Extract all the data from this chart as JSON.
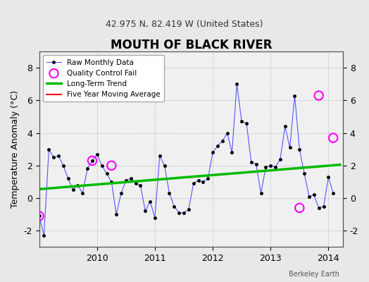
{
  "title": "MOUTH OF BLACK RIVER",
  "subtitle": "42.975 N, 82.419 W (United States)",
  "ylabel": "Temperature Anomaly (°C)",
  "footer": "Berkeley Earth",
  "background_color": "#e8e8e8",
  "plot_bg_color": "#f0f0f0",
  "ylim": [
    -3,
    9
  ],
  "yticks": [
    -2,
    0,
    2,
    4,
    6,
    8
  ],
  "x_start_year": 2009.0,
  "x_end_year": 2014.25,
  "monthly_data": {
    "times": [
      2009.0,
      2009.083,
      2009.167,
      2009.25,
      2009.333,
      2009.417,
      2009.5,
      2009.583,
      2009.667,
      2009.75,
      2009.833,
      2009.917,
      2010.0,
      2010.083,
      2010.167,
      2010.25,
      2010.333,
      2010.417,
      2010.5,
      2010.583,
      2010.667,
      2010.75,
      2010.833,
      2010.917,
      2011.0,
      2011.083,
      2011.167,
      2011.25,
      2011.333,
      2011.417,
      2011.5,
      2011.583,
      2011.667,
      2011.75,
      2011.833,
      2011.917,
      2012.0,
      2012.083,
      2012.167,
      2012.25,
      2012.333,
      2012.417,
      2012.5,
      2012.583,
      2012.667,
      2012.75,
      2012.833,
      2012.917,
      2013.0,
      2013.083,
      2013.167,
      2013.25,
      2013.333,
      2013.417,
      2013.5,
      2013.583,
      2013.667,
      2013.75,
      2013.833,
      2013.917,
      2014.0,
      2014.083
    ],
    "values": [
      -1.1,
      -2.3,
      3.0,
      2.5,
      2.6,
      2.0,
      1.2,
      0.5,
      0.8,
      0.3,
      1.8,
      2.3,
      2.7,
      2.0,
      1.5,
      1.0,
      -1.0,
      0.3,
      1.1,
      1.2,
      0.9,
      0.8,
      -0.8,
      -0.2,
      -1.2,
      2.6,
      2.0,
      0.3,
      -0.5,
      -0.9,
      -0.9,
      -0.7,
      0.9,
      1.1,
      1.0,
      1.2,
      2.8,
      3.2,
      3.5,
      4.0,
      2.8,
      7.0,
      4.7,
      4.6,
      2.2,
      2.1,
      0.3,
      1.9,
      2.0,
      1.9,
      2.4,
      4.4,
      3.1,
      6.3,
      3.0,
      1.5,
      0.1,
      0.2,
      -0.6,
      -0.5,
      1.3,
      0.3
    ]
  },
  "qc_fail_times": [
    2009.0,
    2009.917,
    2010.25,
    2013.5,
    2013.833,
    2014.083
  ],
  "qc_fail_values": [
    -1.1,
    2.3,
    2.0,
    -0.6,
    6.3,
    3.7
  ],
  "trend_times": [
    2009.0,
    2014.2
  ],
  "trend_values": [
    0.55,
    2.05
  ],
  "moving_avg_times": [],
  "moving_avg_values": [],
  "line_color": "#5555ff",
  "marker_color": "#000000",
  "qc_color": "#ff00ff",
  "trend_color": "#00bb00",
  "moving_avg_color": "#ff0000"
}
